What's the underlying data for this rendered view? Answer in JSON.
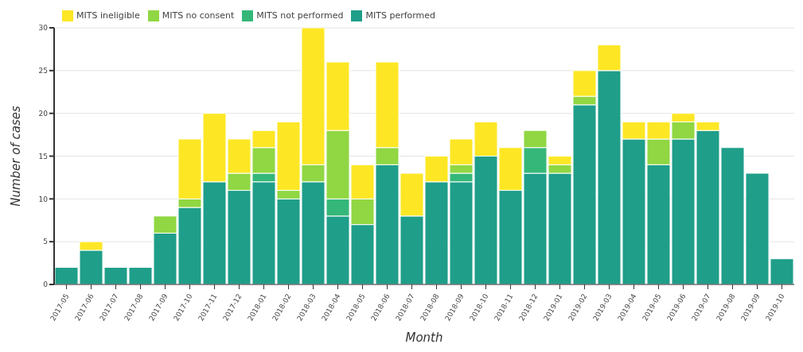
{
  "chart_data": {
    "type": "bar",
    "stacked": true,
    "xlabel": "Month",
    "ylabel": "Number of cases",
    "categories": [
      "2017-05",
      "2017-06",
      "2017-07",
      "2017-08",
      "2017-09",
      "2017-10",
      "2017-11",
      "2017-12",
      "2018-01",
      "2018-02",
      "2018-03",
      "2018-04",
      "2018-05",
      "2018-06",
      "2018-07",
      "2018-08",
      "2018-09",
      "2018-10",
      "2018-11",
      "2018-12",
      "2019-01",
      "2019-02",
      "2019-03",
      "2019-04",
      "2019-05",
      "2019-06",
      "2019-07",
      "2019-08",
      "2019-09",
      "2019-10"
    ],
    "series": [
      {
        "name": "MITS performed",
        "color": "#1f9e89",
        "values": [
          2,
          4,
          2,
          2,
          6,
          9,
          12,
          11,
          12,
          10,
          12,
          8,
          7,
          14,
          8,
          12,
          12,
          15,
          11,
          13,
          13,
          21,
          25,
          17,
          14,
          17,
          18,
          16,
          13,
          3
        ]
      },
      {
        "name": "MITS not performed",
        "color": "#35b779",
        "values": [
          0,
          0,
          0,
          0,
          0,
          0,
          0,
          0,
          1,
          0,
          0,
          2,
          0,
          0,
          0,
          0,
          1,
          0,
          0,
          3,
          0,
          0,
          0,
          0,
          0,
          0,
          0,
          0,
          0,
          0
        ]
      },
      {
        "name": "MITS no consent",
        "color": "#90d743",
        "values": [
          0,
          0,
          0,
          0,
          2,
          1,
          0,
          2,
          3,
          1,
          2,
          8,
          3,
          2,
          0,
          0,
          1,
          0,
          0,
          2,
          1,
          1,
          0,
          0,
          3,
          2,
          0,
          0,
          0,
          0
        ]
      },
      {
        "name": "MITS ineligible",
        "color": "#fde725",
        "values": [
          0,
          1,
          0,
          0,
          0,
          7,
          8,
          4,
          2,
          8,
          16,
          8,
          4,
          10,
          5,
          3,
          3,
          4,
          5,
          0,
          1,
          3,
          3,
          2,
          2,
          1,
          1,
          0,
          0,
          0
        ]
      }
    ],
    "ylim": [
      0,
      30
    ],
    "yticks": [
      0,
      5,
      10,
      15,
      20,
      25,
      30
    ],
    "grid": "y",
    "legend": "top left"
  }
}
